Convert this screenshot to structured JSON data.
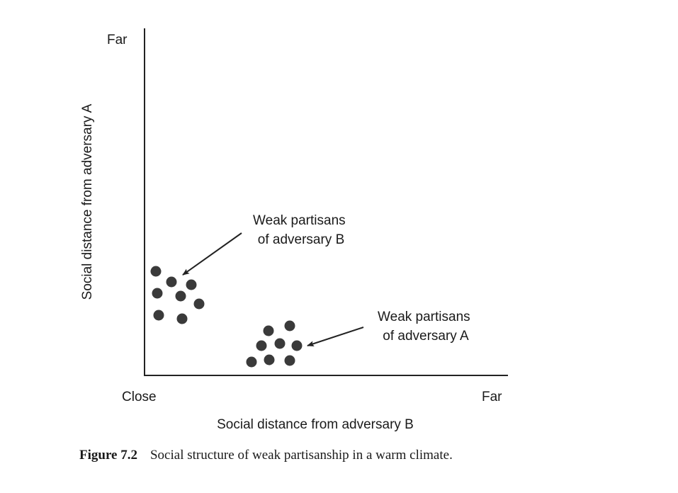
{
  "diagram": {
    "y_axis": {
      "label": "Social distance from adversary A",
      "top_label": "Far"
    },
    "x_axis": {
      "label": "Social distance from adversary B",
      "left_label": "Close",
      "right_label": "Far"
    },
    "groups": [
      {
        "id": "b",
        "label_lines": [
          "Weak partisans",
          "of adversary B"
        ]
      },
      {
        "id": "a",
        "label_lines": [
          "Weak partisans",
          "of adversary A"
        ]
      }
    ],
    "dot_color": "#3a3a3a"
  },
  "caption": {
    "label": "Figure 7.2",
    "text": "Social structure of weak partisanship in a warm climate."
  }
}
